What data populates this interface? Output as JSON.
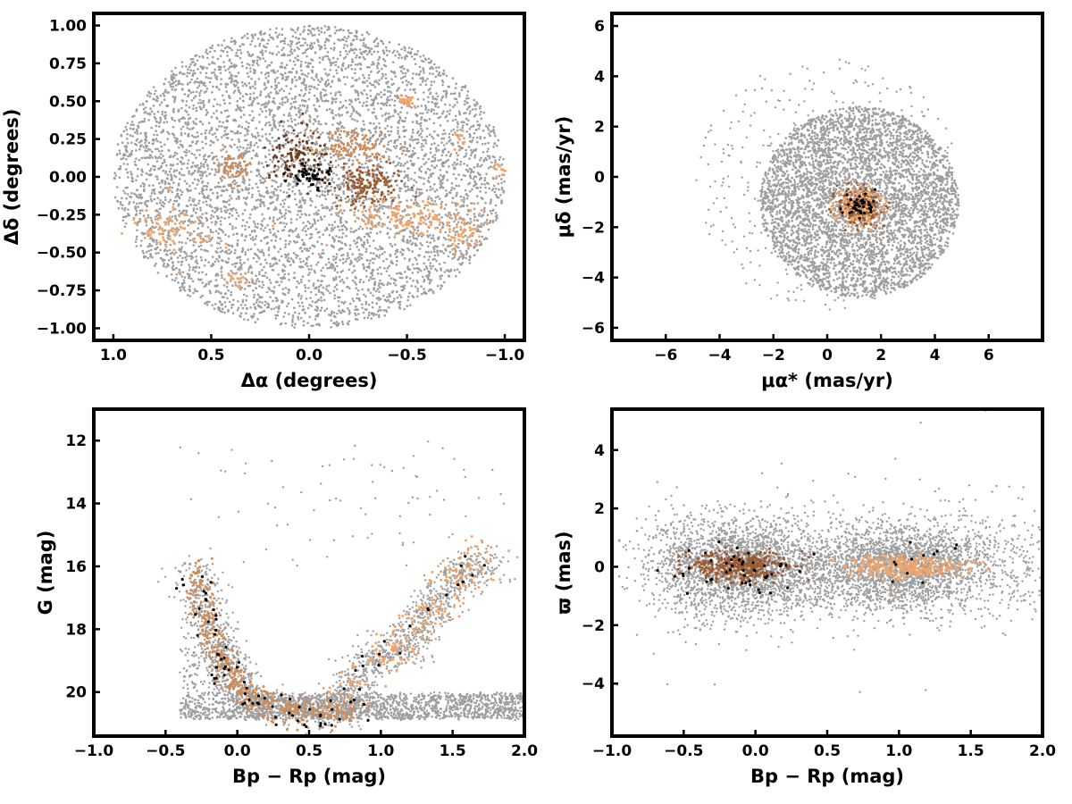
{
  "colors": {
    "field": "#9e9e9e",
    "light_orange": "#f2a56a",
    "mid_orange": "#d08a55",
    "brown": "#9a5a32",
    "dark_brown": "#6b3a1f",
    "members": "#000000"
  },
  "chart_data": [
    {
      "id": "sky",
      "type": "scatter",
      "xlabel": "Δα (degrees)",
      "ylabel": "Δδ (degrees)",
      "xlim": [
        1.1,
        -1.1
      ],
      "ylim": [
        -1.08,
        1.08
      ],
      "xticks": [
        1.0,
        0.5,
        0.0,
        -0.5,
        -1.0
      ],
      "xtick_labels": [
        "1.0",
        "0.5",
        "0.0",
        "−0.5",
        "−1.0"
      ],
      "yticks": [
        1.0,
        0.75,
        0.5,
        0.25,
        0.0,
        -0.25,
        -0.5,
        -0.75,
        -1.0
      ],
      "ytick_labels": [
        "1.00",
        "0.75",
        "0.50",
        "0.25",
        "0.00",
        "−0.25",
        "−0.50",
        "−0.75",
        "−1.00"
      ],
      "field": {
        "shape": "ellipse",
        "center": [
          0.0,
          0.0
        ],
        "radius": [
          1.0,
          1.0
        ],
        "count": 5500
      },
      "groups": [
        {
          "color": "dark_brown",
          "center": [
            0.07,
            0.12
          ],
          "spread": [
            0.09,
            0.09
          ],
          "count": 120
        },
        {
          "color": "brown",
          "center": [
            -0.3,
            -0.05
          ],
          "spread": [
            0.09,
            0.07
          ],
          "count": 160
        },
        {
          "color": "mid_orange",
          "center": [
            -0.22,
            0.2
          ],
          "spread": [
            0.09,
            0.05
          ],
          "count": 110
        },
        {
          "color": "mid_orange",
          "center": [
            0.38,
            0.06
          ],
          "spread": [
            0.06,
            0.05
          ],
          "count": 60
        },
        {
          "color": "light_orange",
          "center": [
            -0.5,
            -0.27
          ],
          "spread": [
            0.16,
            0.06
          ],
          "count": 140
        },
        {
          "color": "light_orange",
          "center": [
            0.7,
            -0.35
          ],
          "spread": [
            0.1,
            0.1
          ],
          "count": 90
        },
        {
          "color": "light_orange",
          "center": [
            -0.8,
            -0.38
          ],
          "spread": [
            0.05,
            0.06
          ],
          "count": 50
        },
        {
          "color": "light_orange",
          "center": [
            -0.5,
            0.5
          ],
          "spread": [
            0.02,
            0.02
          ],
          "count": 25
        },
        {
          "color": "light_orange",
          "center": [
            -0.77,
            0.25
          ],
          "spread": [
            0.02,
            0.04
          ],
          "count": 15
        },
        {
          "color": "light_orange",
          "center": [
            -0.97,
            0.05
          ],
          "spread": [
            0.02,
            0.02
          ],
          "count": 10
        },
        {
          "color": "light_orange",
          "center": [
            0.36,
            -0.68
          ],
          "spread": [
            0.03,
            0.03
          ],
          "count": 20
        },
        {
          "color": "members",
          "center": [
            0.0,
            0.0
          ],
          "spread": [
            0.05,
            0.04
          ],
          "count": 45
        }
      ]
    },
    {
      "id": "proper-motion",
      "type": "scatter",
      "xlabel": "μα* (mas/yr)",
      "ylabel": "μδ (mas/yr)",
      "xlim": [
        -8.0,
        8.0
      ],
      "ylim": [
        -6.5,
        6.5
      ],
      "xticks": [
        -6,
        -4,
        -2,
        0,
        2,
        4,
        6
      ],
      "xtick_labels": [
        "−6",
        "−4",
        "−2",
        "0",
        "2",
        "4",
        "6"
      ],
      "yticks": [
        6,
        4,
        2,
        0,
        -2,
        -4,
        -6
      ],
      "ytick_labels": [
        "6",
        "4",
        "2",
        "0",
        "−2",
        "−4",
        "−6"
      ],
      "field": {
        "shape": "ellipse",
        "center": [
          1.2,
          -1.0
        ],
        "radius": [
          3.7,
          3.8
        ],
        "count": 4200
      },
      "halo": {
        "center": [
          0.0,
          -0.3
        ],
        "radius": [
          5.0,
          5.0
        ],
        "count": 450
      },
      "groups": [
        {
          "color": "brown",
          "center": [
            1.2,
            -1.15
          ],
          "spread": [
            0.4,
            0.35
          ],
          "count": 260
        },
        {
          "color": "light_orange",
          "center": [
            1.2,
            -1.15
          ],
          "spread": [
            0.45,
            0.45
          ],
          "count": 120
        },
        {
          "color": "members",
          "center": [
            1.2,
            -1.1
          ],
          "spread": [
            0.3,
            0.25
          ],
          "count": 40
        }
      ]
    },
    {
      "id": "cmd",
      "type": "scatter",
      "xlabel": "Bp − Rp (mag)",
      "ylabel": "G (mag)",
      "xlim": [
        -1.0,
        2.0
      ],
      "ylim": [
        21.4,
        11.0
      ],
      "xticks": [
        -1.0,
        -0.5,
        0.0,
        0.5,
        1.0,
        1.5,
        2.0
      ],
      "xtick_labels": [
        "−1.0",
        "−0.5",
        "0.0",
        "0.5",
        "1.0",
        "1.5",
        "2.0"
      ],
      "yticks": [
        20,
        18,
        16,
        14,
        12
      ],
      "ytick_labels": [
        "20",
        "18",
        "16",
        "14",
        "12"
      ],
      "sequences": [
        {
          "name_in_figure": "",
          "points": [
            [
              -0.3,
              16.0
            ],
            [
              -0.22,
              17.5
            ],
            [
              -0.15,
              18.6
            ],
            [
              -0.05,
              19.6
            ],
            [
              0.15,
              20.3
            ],
            [
              0.5,
              20.7
            ],
            [
              0.85,
              20.6
            ]
          ]
        },
        {
          "name_in_figure": "",
          "points": [
            [
              0.7,
              20.3
            ],
            [
              0.95,
              19.0
            ],
            [
              1.2,
              18.5
            ],
            [
              1.35,
              17.2
            ],
            [
              1.55,
              16.3
            ],
            [
              1.75,
              15.8
            ]
          ]
        }
      ],
      "groups": [
        {
          "color": "mid_orange",
          "seq": 0,
          "count": 420,
          "spread": 0.05
        },
        {
          "color": "light_orange",
          "seq": 1,
          "count": 220,
          "spread": 0.07
        },
        {
          "color": "members",
          "seq": 0,
          "count": 70,
          "spread": 0.06
        },
        {
          "color": "members",
          "seq": 1,
          "count": 20,
          "spread": 0.06
        }
      ]
    },
    {
      "id": "parallax",
      "type": "scatter",
      "xlabel": "Bp − Rp (mag)",
      "ylabel": "ϖ (mas)",
      "xlim": [
        -1.0,
        2.0
      ],
      "ylim": [
        -5.8,
        5.4
      ],
      "xticks": [
        -1.0,
        -0.5,
        0.0,
        0.5,
        1.0,
        1.5,
        2.0
      ],
      "xtick_labels": [
        "−1.0",
        "−0.5",
        "0.0",
        "0.5",
        "1.0",
        "1.5",
        "2.0"
      ],
      "yticks": [
        4,
        2,
        0,
        -2,
        -4
      ],
      "ytick_labels": [
        "4",
        "2",
        "0",
        "−2",
        "−4"
      ],
      "groups": [
        {
          "color": "brown",
          "center": [
            -0.1,
            0.0
          ],
          "spread": [
            0.17,
            0.25
          ],
          "count": 380
        },
        {
          "color": "light_orange",
          "center": [
            1.05,
            0.0
          ],
          "spread": [
            0.2,
            0.2
          ],
          "count": 300
        },
        {
          "color": "members",
          "center": [
            -0.1,
            -0.1
          ],
          "spread": [
            0.2,
            0.4
          ],
          "count": 50
        },
        {
          "color": "members",
          "center": [
            1.1,
            0.1
          ],
          "spread": [
            0.15,
            0.3
          ],
          "count": 12
        }
      ]
    }
  ]
}
